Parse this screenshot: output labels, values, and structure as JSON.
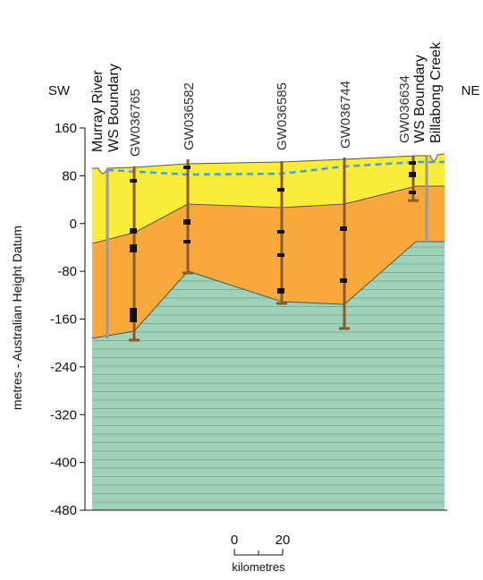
{
  "header": {
    "left": "SW",
    "right": "NE"
  },
  "y_axis": {
    "title": "metres - Australian Height Datum",
    "range": [
      -480,
      160
    ],
    "ticks": [
      160,
      80,
      0,
      -80,
      -160,
      -240,
      -320,
      -400,
      -480
    ]
  },
  "labels": [
    "Murray River",
    "WS Boundary",
    "GW036765",
    "GW036582",
    "GW036585",
    "GW036744",
    "GW036634",
    "WS Boundary",
    "Billabong Creek"
  ],
  "scale_bar": {
    "start": "0",
    "end": "20",
    "unit": "kilometres"
  }
}
